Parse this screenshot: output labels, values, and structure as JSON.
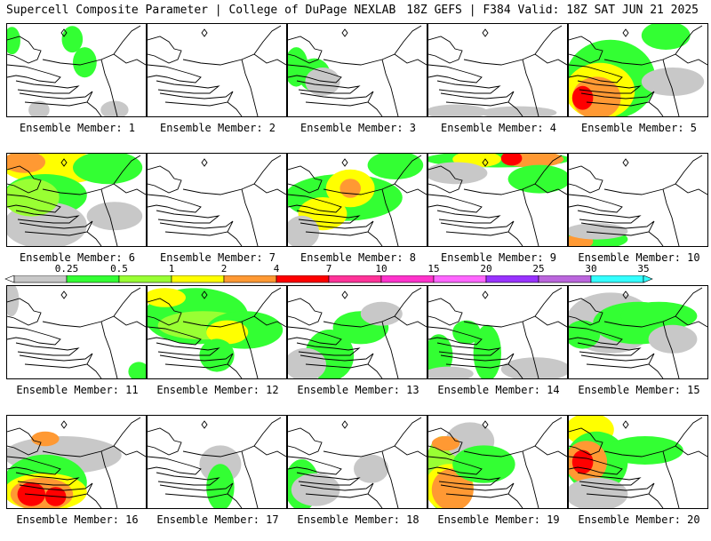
{
  "header": {
    "left": "Supercell Composite Parameter | College of DuPage NEXLAB",
    "right": "18Z GEFS | F384 Valid: 18Z SAT JUN 21 2025"
  },
  "colorbar": {
    "labels": [
      "0.25",
      "0.5",
      "1",
      "2",
      "4",
      "7",
      "10",
      "15",
      "20",
      "25",
      "30",
      "35"
    ],
    "colors": [
      "#c8c8c8",
      "#33ff33",
      "#99ff33",
      "#ffff00",
      "#ff9933",
      "#ff0000",
      "#ff3399",
      "#ff33cc",
      "#ff66ff",
      "#9933ff",
      "#bb66dd",
      "#33ffff"
    ]
  },
  "panels": [
    {
      "label": "Ensemble Member: 1",
      "blobs": [
        [
          0.0,
          0.07,
          0.06,
          0.3,
          1
        ],
        [
          0.42,
          0.52,
          0.05,
          0.28,
          1
        ],
        [
          0.5,
          0.62,
          0.28,
          0.55,
          1
        ],
        [
          0.18,
          0.28,
          0.86,
          1.0,
          0
        ],
        [
          0.7,
          0.85,
          0.86,
          1.0,
          0
        ]
      ]
    },
    {
      "label": "Ensemble Member: 2",
      "blobs": []
    },
    {
      "label": "Ensemble Member: 3",
      "blobs": [
        [
          0.0,
          0.12,
          0.28,
          0.65,
          1
        ],
        [
          0.1,
          0.28,
          0.4,
          0.7,
          1
        ],
        [
          0.15,
          0.35,
          0.5,
          0.75,
          0
        ]
      ]
    },
    {
      "label": "Ensemble Member: 4",
      "blobs": [
        [
          0.0,
          0.4,
          0.9,
          1.0,
          0
        ],
        [
          0.4,
          0.9,
          0.92,
          1.0,
          0
        ]
      ]
    },
    {
      "label": "Ensemble Member: 5",
      "blobs": [
        [
          0.0,
          0.6,
          0.2,
          1.0,
          1
        ],
        [
          0.0,
          0.45,
          0.45,
          1.0,
          3
        ],
        [
          0.05,
          0.35,
          0.6,
          1.0,
          4
        ],
        [
          0.05,
          0.15,
          0.7,
          0.9,
          5
        ],
        [
          0.55,
          0.85,
          0.0,
          0.25,
          1
        ],
        [
          0.55,
          0.95,
          0.5,
          0.75,
          0
        ]
      ]
    },
    {
      "label": "Ensemble Member: 6",
      "blobs": [
        [
          0.0,
          0.7,
          0.0,
          0.3,
          3
        ],
        [
          0.0,
          0.25,
          0.0,
          0.18,
          4
        ],
        [
          0.0,
          0.55,
          0.25,
          0.65,
          1
        ],
        [
          0.0,
          0.55,
          0.55,
          1.0,
          0
        ],
        [
          0.0,
          0.35,
          0.3,
          0.65,
          2
        ],
        [
          0.5,
          0.95,
          0.0,
          0.3,
          1
        ],
        [
          0.6,
          0.95,
          0.55,
          0.8,
          0
        ]
      ]
    },
    {
      "label": "Ensemble Member: 7",
      "blobs": []
    },
    {
      "label": "Ensemble Member: 8",
      "blobs": [
        [
          0.0,
          0.8,
          0.25,
          0.7,
          1
        ],
        [
          0.3,
          0.6,
          0.2,
          0.55,
          3
        ],
        [
          0.4,
          0.5,
          0.3,
          0.45,
          4
        ],
        [
          0.1,
          0.4,
          0.5,
          0.8,
          3
        ],
        [
          0.6,
          0.95,
          0.0,
          0.25,
          1
        ],
        [
          0.0,
          0.2,
          0.7,
          1.0,
          0
        ]
      ]
    },
    {
      "label": "Ensemble Member: 9",
      "blobs": [
        [
          0.0,
          1.0,
          0.0,
          0.12,
          1
        ],
        [
          0.2,
          0.5,
          0.0,
          0.12,
          3
        ],
        [
          0.55,
          0.95,
          0.0,
          0.12,
          4
        ],
        [
          0.55,
          0.65,
          0.0,
          0.1,
          5
        ],
        [
          0.0,
          0.4,
          0.12,
          0.3,
          0
        ],
        [
          0.6,
          1.0,
          0.15,
          0.4,
          1
        ]
      ]
    },
    {
      "label": "Ensemble Member: 10",
      "blobs": [
        [
          0.0,
          0.4,
          0.85,
          1.0,
          1
        ],
        [
          0.0,
          0.15,
          0.9,
          1.0,
          4
        ],
        [
          0.0,
          0.4,
          0.78,
          0.9,
          0
        ]
      ]
    },
    {
      "label": "Ensemble Member: 11",
      "blobs": [
        [
          0.0,
          0.06,
          0.0,
          0.3,
          0
        ],
        [
          0.9,
          1.0,
          0.85,
          1.0,
          1
        ]
      ]
    },
    {
      "label": "Ensemble Member: 12",
      "blobs": [
        [
          0.0,
          0.7,
          0.05,
          0.6,
          1
        ],
        [
          0.0,
          0.25,
          0.05,
          0.2,
          3
        ],
        [
          0.1,
          0.7,
          0.3,
          0.55,
          2
        ],
        [
          0.45,
          0.95,
          0.3,
          0.65,
          1
        ],
        [
          0.45,
          0.7,
          0.4,
          0.6,
          3
        ],
        [
          0.4,
          0.6,
          0.6,
          0.9,
          1
        ]
      ]
    },
    {
      "label": "Ensemble Member: 13",
      "blobs": [
        [
          0.15,
          0.45,
          0.5,
          1.0,
          1
        ],
        [
          0.35,
          0.7,
          0.3,
          0.6,
          1
        ],
        [
          0.0,
          0.25,
          0.7,
          1.0,
          0
        ],
        [
          0.55,
          0.8,
          0.2,
          0.4,
          0
        ]
      ]
    },
    {
      "label": "Ensemble Member: 14",
      "blobs": [
        [
          0.0,
          0.15,
          0.55,
          0.95,
          1
        ],
        [
          0.35,
          0.5,
          0.45,
          1.0,
          1
        ],
        [
          0.2,
          0.35,
          0.4,
          0.6,
          1
        ],
        [
          0.55,
          1.0,
          0.8,
          1.0,
          0
        ],
        [
          0.0,
          0.3,
          0.9,
          1.0,
          0
        ]
      ]
    },
    {
      "label": "Ensemble Member: 15",
      "blobs": [
        [
          0.0,
          0.6,
          0.1,
          0.7,
          0
        ],
        [
          0.2,
          0.8,
          0.2,
          0.6,
          1
        ],
        [
          0.0,
          0.2,
          0.4,
          0.65,
          1
        ],
        [
          0.4,
          0.9,
          0.2,
          0.45,
          1
        ],
        [
          0.6,
          0.9,
          0.45,
          0.7,
          0
        ]
      ]
    },
    {
      "label": "Ensemble Member: 16",
      "blobs": [
        [
          0.0,
          0.8,
          0.25,
          0.6,
          0
        ],
        [
          0.0,
          0.55,
          0.45,
          1.0,
          1
        ],
        [
          0.0,
          0.55,
          0.65,
          1.0,
          3
        ],
        [
          0.05,
          0.45,
          0.7,
          1.0,
          4
        ],
        [
          0.1,
          0.25,
          0.75,
          0.95,
          5
        ],
        [
          0.3,
          0.4,
          0.8,
          0.95,
          5
        ],
        [
          0.2,
          0.35,
          0.2,
          0.3,
          4
        ]
      ]
    },
    {
      "label": "Ensemble Member: 17",
      "blobs": [
        [
          0.4,
          0.65,
          0.35,
          0.7,
          0
        ],
        [
          0.45,
          0.6,
          0.55,
          1.0,
          1
        ]
      ]
    },
    {
      "label": "Ensemble Member: 18",
      "blobs": [
        [
          0.0,
          0.2,
          0.5,
          1.0,
          1
        ],
        [
          0.05,
          0.35,
          0.65,
          0.95,
          0
        ],
        [
          0.5,
          0.7,
          0.45,
          0.7,
          0
        ]
      ]
    },
    {
      "label": "Ensemble Member: 19",
      "blobs": [
        [
          0.0,
          0.2,
          0.25,
          1.0,
          2
        ],
        [
          0.0,
          0.3,
          0.55,
          1.0,
          3
        ],
        [
          0.05,
          0.3,
          0.6,
          1.0,
          4
        ],
        [
          0.15,
          0.45,
          0.1,
          0.45,
          0
        ],
        [
          0.2,
          0.6,
          0.35,
          0.7,
          1
        ],
        [
          0.05,
          0.2,
          0.25,
          0.35,
          4
        ]
      ]
    },
    {
      "label": "Ensemble Member: 20",
      "blobs": [
        [
          0.0,
          0.3,
          0.0,
          0.3,
          3
        ],
        [
          0.0,
          0.4,
          0.2,
          0.8,
          1
        ],
        [
          0.0,
          0.25,
          0.3,
          0.7,
          4
        ],
        [
          0.05,
          0.15,
          0.4,
          0.6,
          5
        ],
        [
          0.3,
          0.8,
          0.25,
          0.5,
          1
        ],
        [
          0.0,
          0.4,
          0.7,
          1.0,
          0
        ]
      ]
    }
  ]
}
